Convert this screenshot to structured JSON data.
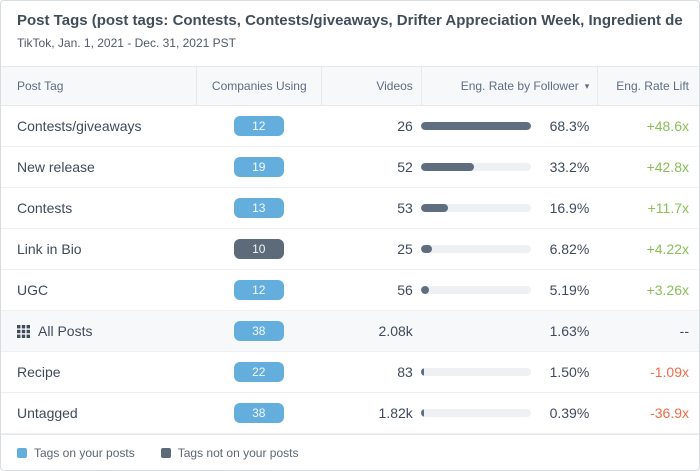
{
  "header": {
    "title": "Post Tags (post tags: Contests, Contests/giveaways, Drifter Appreciation Week, Ingredient deep-dive, Link in Bio, Ne...",
    "subtitle": "TikTok, Jan. 1, 2021 - Dec. 31, 2021 PST"
  },
  "table": {
    "columns": [
      "Post Tag",
      "Companies Using",
      "Videos",
      "Eng. Rate by Follower",
      "Eng. Rate Lift"
    ],
    "sorted_by": "Eng. Rate by Follower",
    "sort_direction": "desc",
    "rows": [
      {
        "tag": "Contests/giveaways",
        "companies": "12",
        "pill_color": "blue",
        "videos": "26",
        "eng_rate": "68.3%",
        "bar_pct": 100,
        "lift": "+48.6x",
        "lift_type": "positive",
        "grid_icon": false,
        "highlighted": false
      },
      {
        "tag": "New release",
        "companies": "19",
        "pill_color": "blue",
        "videos": "52",
        "eng_rate": "33.2%",
        "bar_pct": 48.6,
        "lift": "+42.8x",
        "lift_type": "positive",
        "grid_icon": false,
        "highlighted": false
      },
      {
        "tag": "Contests",
        "companies": "13",
        "pill_color": "blue",
        "videos": "53",
        "eng_rate": "16.9%",
        "bar_pct": 24.7,
        "lift": "+11.7x",
        "lift_type": "positive",
        "grid_icon": false,
        "highlighted": false
      },
      {
        "tag": "Link in Bio",
        "companies": "10",
        "pill_color": "dark",
        "videos": "25",
        "eng_rate": "6.82%",
        "bar_pct": 10.0,
        "lift": "+4.22x",
        "lift_type": "positive",
        "grid_icon": false,
        "highlighted": false
      },
      {
        "tag": "UGC",
        "companies": "12",
        "pill_color": "blue",
        "videos": "56",
        "eng_rate": "5.19%",
        "bar_pct": 7.6,
        "lift": "+3.26x",
        "lift_type": "positive",
        "grid_icon": false,
        "highlighted": false
      },
      {
        "tag": "All Posts",
        "companies": "38",
        "pill_color": "blue",
        "videos": "2.08k",
        "eng_rate": "1.63%",
        "bar_pct": null,
        "lift": "--",
        "lift_type": "neutral",
        "grid_icon": true,
        "highlighted": true
      },
      {
        "tag": "Recipe",
        "companies": "22",
        "pill_color": "blue",
        "videos": "83",
        "eng_rate": "1.50%",
        "bar_pct": 2.2,
        "lift": "-1.09x",
        "lift_type": "negative",
        "grid_icon": false,
        "highlighted": false
      },
      {
        "tag": "Untagged",
        "companies": "38",
        "pill_color": "blue",
        "videos": "1.82k",
        "eng_rate": "0.39%",
        "bar_pct": 0.6,
        "lift": "-36.9x",
        "lift_type": "negative",
        "grid_icon": false,
        "highlighted": false
      }
    ]
  },
  "legend": {
    "items": [
      {
        "label": "Tags on your posts",
        "color": "#64aede"
      },
      {
        "label": "Tags not on your posts",
        "color": "#5c6a7a"
      }
    ]
  },
  "colors": {
    "blue_pill": "#64aede",
    "dark_pill": "#5c6a7a",
    "bar_fill": "#5f6e7e",
    "bar_track": "#eef1f4",
    "positive": "#88c057",
    "negative": "#ee6c4a",
    "neutral": "#3f4b5b"
  }
}
